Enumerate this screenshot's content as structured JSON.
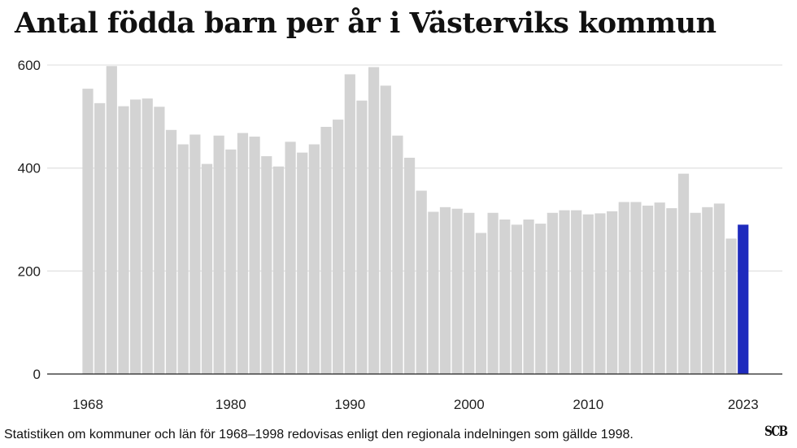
{
  "chart_data": {
    "type": "bar",
    "title": "Antal födda barn per år i Västerviks kommun",
    "xlabel": "",
    "ylabel": "",
    "ylim": [
      0,
      600
    ],
    "y_ticks": [
      0,
      200,
      400,
      600
    ],
    "x_tick_labels": [
      "1968",
      "1980",
      "1990",
      "2000",
      "2010",
      "2023"
    ],
    "grid": true,
    "highlight_year": 2023,
    "colors": {
      "bar": "#d3d3d3",
      "highlight": "#1f2bbd",
      "grid": "#e3e3e3",
      "baseline": "#222222"
    },
    "categories": [
      1968,
      1969,
      1970,
      1971,
      1972,
      1973,
      1974,
      1975,
      1976,
      1977,
      1978,
      1979,
      1980,
      1981,
      1982,
      1983,
      1984,
      1985,
      1986,
      1987,
      1988,
      1989,
      1990,
      1991,
      1992,
      1993,
      1994,
      1995,
      1996,
      1997,
      1998,
      1999,
      2000,
      2001,
      2002,
      2003,
      2004,
      2005,
      2006,
      2007,
      2008,
      2009,
      2010,
      2011,
      2012,
      2013,
      2014,
      2015,
      2016,
      2017,
      2018,
      2019,
      2020,
      2021,
      2022,
      2023
    ],
    "values": [
      554,
      526,
      598,
      520,
      533,
      535,
      519,
      474,
      446,
      465,
      408,
      463,
      436,
      468,
      461,
      423,
      403,
      451,
      430,
      446,
      480,
      494,
      582,
      531,
      596,
      560,
      463,
      420,
      356,
      315,
      324,
      321,
      313,
      274,
      313,
      300,
      290,
      300,
      292,
      313,
      318,
      318,
      310,
      312,
      316,
      334,
      334,
      327,
      333,
      322,
      389,
      313,
      324,
      331,
      263,
      290
    ]
  },
  "footnote": "Statistiken om kommuner och län för 1968–1998 redovisas enligt den regionala indelningen som gällde 1998.",
  "logo_text": "SCB"
}
